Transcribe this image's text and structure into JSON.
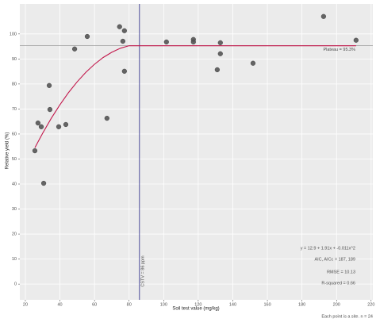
{
  "chart_data": {
    "type": "scatter",
    "x_label": "Soil test value (mg/kg)",
    "y_label": "Relative yield (%)",
    "caption": "Each point is a site. n = 24",
    "xlim": [
      16.8,
      221
    ],
    "ylim": [
      -6.3,
      112
    ],
    "xticks": [
      20,
      40,
      60,
      80,
      100,
      120,
      140,
      160,
      180,
      200,
      220
    ],
    "yticks": [
      0,
      10,
      20,
      30,
      40,
      50,
      60,
      70,
      80,
      90,
      100
    ],
    "grid": true,
    "series": [
      {
        "color": "#555555",
        "x": [
          25.5,
          27.3,
          29.2,
          30.6,
          33.8,
          34.2,
          39.3,
          43.4,
          48.5,
          55.8,
          67.2,
          74.5,
          76.4,
          77.3,
          77.3,
          101.6,
          117.2,
          117.2,
          132.8,
          132.8,
          131,
          151.7,
          192.5,
          211.3
        ],
        "values": [
          53.3,
          64.4,
          62.9,
          40.3,
          79.4,
          69.8,
          62.9,
          63.8,
          94.0,
          99.0,
          66.3,
          102.9,
          97.1,
          101.3,
          85.1,
          96.8,
          97.8,
          96.8,
          96.5,
          92.1,
          85.7,
          88.3,
          107,
          97.5
        ]
      },
      {
        "type": "line",
        "color": "#c2174b",
        "x": [
          25.5,
          30,
          35,
          40,
          45,
          50,
          55,
          60,
          65,
          70,
          75,
          80,
          86,
          211.3
        ],
        "values": [
          54.5,
          60.3,
          66.3,
          71.7,
          76.6,
          80.9,
          84.7,
          87.9,
          90.6,
          92.7,
          94.3,
          95.3,
          95.3,
          95.3
        ]
      }
    ],
    "hlines": [
      {
        "value": 95.3,
        "label": "Plateau = 95.3%",
        "color": "#9a9a9a"
      }
    ],
    "vlines": [
      {
        "value": 86,
        "label": "CSTV = 86 ppm",
        "color": "#3b3b8f"
      }
    ],
    "annotations": [
      "y = 12.9 + 1.91x + -0.011x^2",
      "AIC, AICc = 187, 189",
      "RMSE = 10.13",
      "R-squared = 0.66"
    ]
  }
}
